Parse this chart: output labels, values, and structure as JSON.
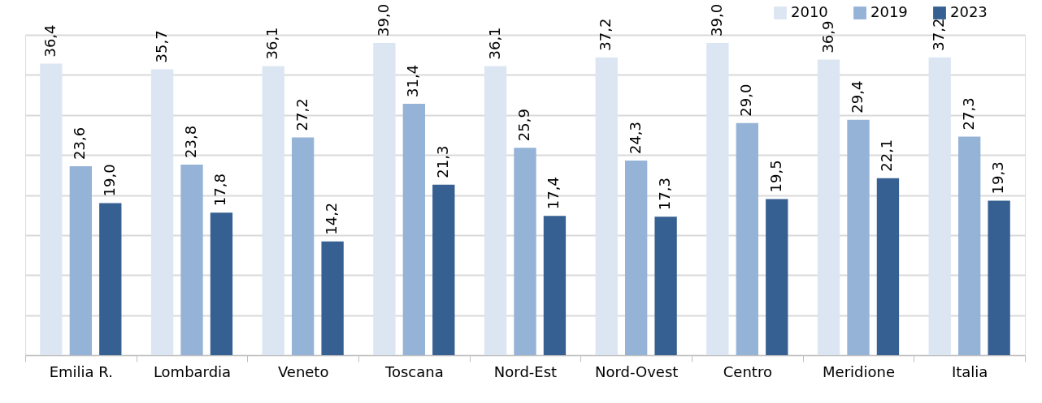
{
  "chart_data": {
    "type": "bar",
    "categories": [
      "Emilia R.",
      "Lombardia",
      "Veneto",
      "Toscana",
      "Nord-Est",
      "Nord-Ovest",
      "Centro",
      "Meridione",
      "Italia"
    ],
    "series": [
      {
        "name": "2010",
        "color": "#dce6f2",
        "values": [
          36.4,
          35.7,
          36.1,
          39.0,
          36.1,
          37.2,
          39.0,
          36.9,
          37.2
        ],
        "value_labels": [
          "36,4",
          "35,7",
          "36,1",
          "39,0",
          "36,1",
          "37,2",
          "39,0",
          "36,9",
          "37,2"
        ]
      },
      {
        "name": "2019",
        "color": "#95b3d7",
        "values": [
          23.6,
          23.8,
          27.2,
          31.4,
          25.9,
          24.3,
          29.0,
          29.4,
          27.3
        ],
        "value_labels": [
          "23,6",
          "23,8",
          "27,2",
          "31,4",
          "25,9",
          "24,3",
          "29,0",
          "29,4",
          "27,3"
        ]
      },
      {
        "name": "2023",
        "color": "#366092",
        "values": [
          19.0,
          17.8,
          14.2,
          21.3,
          17.4,
          17.3,
          19.5,
          22.1,
          19.3
        ],
        "value_labels": [
          "19,0",
          "17,8",
          "14,2",
          "21,3",
          "17,4",
          "17,3",
          "19,5",
          "22,1",
          "19,3"
        ]
      }
    ],
    "tick_labels": "x",
    "grid": "y",
    "legend": "top right"
  }
}
